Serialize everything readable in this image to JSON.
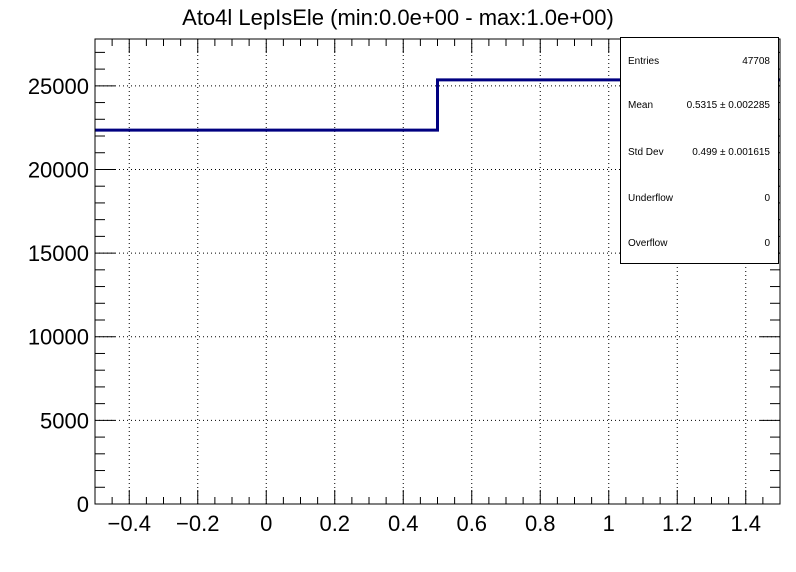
{
  "chart_data": {
    "type": "histogram",
    "title": "Ato4l LepIsEle (min:0.0e+00 - max:1.0e+00)",
    "xlabel": "",
    "ylabel": "",
    "xlim": [
      -0.5,
      1.5
    ],
    "ylim": [
      0,
      27800
    ],
    "grid": true,
    "line_color": "#000080",
    "x_ticks": [
      "−0.4",
      "−0.2",
      "0",
      "0.2",
      "0.4",
      "0.6",
      "0.8",
      "1",
      "1.2",
      "1.4"
    ],
    "x_tick_values": [
      -0.4,
      -0.2,
      0,
      0.2,
      0.4,
      0.6,
      0.8,
      1.0,
      1.2,
      1.4
    ],
    "y_ticks": [
      "0",
      "5000",
      "10000",
      "15000",
      "20000",
      "25000"
    ],
    "y_tick_values": [
      0,
      5000,
      10000,
      15000,
      20000,
      25000
    ],
    "bins": [
      {
        "low": -0.5,
        "high": 0.5,
        "value": 22350
      },
      {
        "low": 0.5,
        "high": 1.5,
        "value": 25358
      }
    ]
  },
  "stats": {
    "entries_label": "Entries",
    "entries_value": "47708",
    "mean_label": "Mean",
    "mean_value": "0.5315 ± 0.002285",
    "stddev_label": "Std Dev",
    "stddev_value": "0.499 ± 0.001615",
    "underflow_label": "Underflow",
    "underflow_value": "0",
    "overflow_label": "Overflow",
    "overflow_value": "0"
  }
}
